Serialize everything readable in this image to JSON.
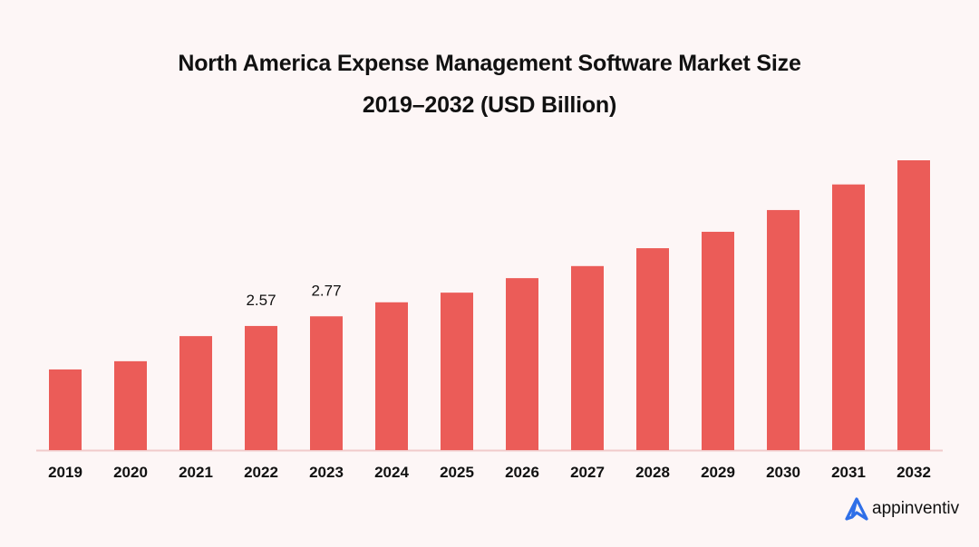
{
  "chart_data": {
    "type": "bar",
    "title": "North America Expense Management Software Market Size",
    "subtitle": "2019–2032 (USD Billion)",
    "xlabel": "",
    "ylabel": "",
    "categories": [
      "2019",
      "2020",
      "2021",
      "2022",
      "2023",
      "2024",
      "2025",
      "2026",
      "2027",
      "2028",
      "2029",
      "2030",
      "2031",
      "2032"
    ],
    "values": [
      1.67,
      1.84,
      2.36,
      2.57,
      2.77,
      3.06,
      3.26,
      3.56,
      3.81,
      4.18,
      4.52,
      4.97,
      5.5,
      6.0
    ],
    "data_labels": [
      {
        "category": "2022",
        "text": "2.57"
      },
      {
        "category": "2023",
        "text": "2.77"
      }
    ],
    "ylim": [
      0,
      6.0
    ],
    "grid": false,
    "legend": "none",
    "bar_color": "#eb5c58"
  },
  "brand": {
    "name": "appinventiv",
    "logo_color": "#2f6fe8"
  }
}
